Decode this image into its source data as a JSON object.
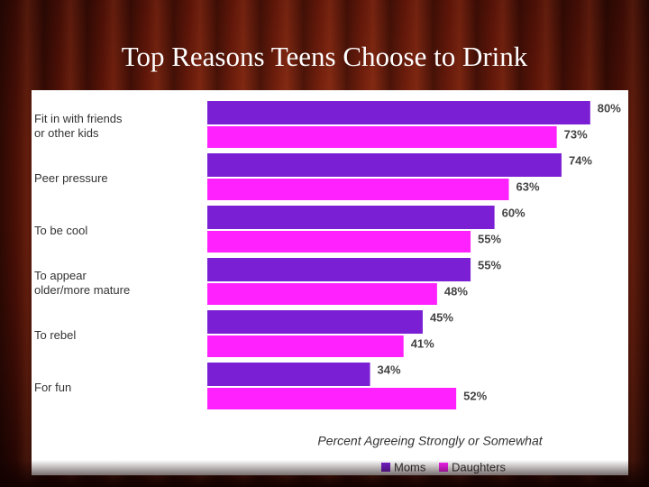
{
  "chart_data": {
    "type": "hbar",
    "title": "Top Reasons Teens Choose to Drink",
    "categories": [
      "Fit in with friends\nor other kids",
      "Peer pressure",
      "To be cool",
      "To appear\nolder/more mature",
      "To rebel",
      "For fun"
    ],
    "series": [
      {
        "name": "Moms",
        "color": "#7a1fd4",
        "values": [
          80,
          74,
          60,
          55,
          45,
          34
        ],
        "value_labels": [
          "80%",
          "74%",
          "60%",
          "55%",
          "45%",
          "34%"
        ]
      },
      {
        "name": "Daughters",
        "color": "#ff22ff",
        "values": [
          73,
          63,
          55,
          48,
          41,
          52
        ],
        "value_labels": [
          "73%",
          "63%",
          "55%",
          "48%",
          "41%",
          "52%"
        ]
      }
    ],
    "xlim": [
      0,
      100
    ],
    "xlabel": "Percent Agreeing Strongly or Somewhat",
    "legend": "bottom"
  }
}
